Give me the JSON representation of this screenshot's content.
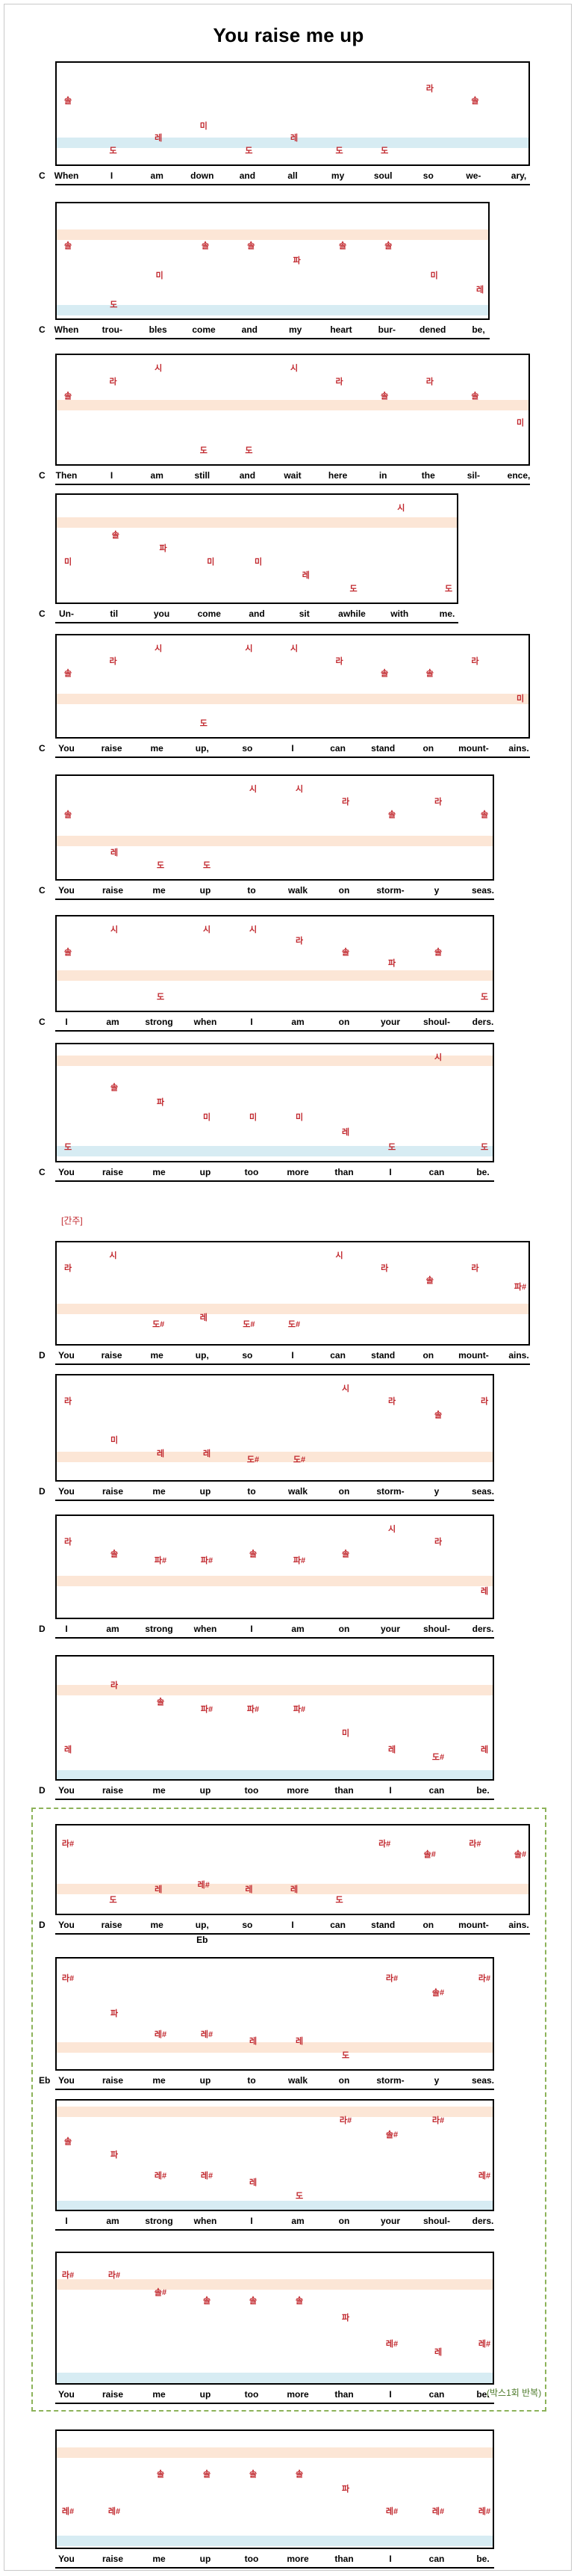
{
  "title": "You raise me up",
  "colors": {
    "note": "#c1272d",
    "band_peach": "#fce6d6",
    "band_blue": "#d7ecf3",
    "repeat_box": "#8db35a"
  },
  "intro_label": "[간주]",
  "repeat_label": "(박스1회 반복)",
  "rows": [
    {
      "chord": "C",
      "lyrics": [
        "When",
        "I",
        "am",
        "down",
        "and",
        "all",
        "my",
        "soul",
        "so",
        "we-",
        "ary,"
      ],
      "notes": [
        "솔",
        "도",
        "레",
        "미",
        "도",
        "레",
        "도",
        "도",
        "라",
        "솔",
        ""
      ]
    },
    {
      "chord": "C",
      "lyrics": [
        "When",
        "trou-",
        "bles",
        "come",
        "and",
        "my",
        "heart",
        "bur-",
        "dened",
        "be,"
      ],
      "notes": [
        "솔",
        "도",
        "미",
        "솔",
        "솔",
        "파",
        "솔",
        "솔",
        "미",
        "레"
      ]
    },
    {
      "chord": "C",
      "lyrics": [
        "Then",
        "I",
        "am",
        "still",
        "and",
        "wait",
        "here",
        "in",
        "the",
        "sil-",
        "ence,"
      ],
      "notes": [
        "솔",
        "라",
        "시",
        "도",
        "도",
        "시",
        "라",
        "솔",
        "라",
        "솔",
        "미"
      ]
    },
    {
      "chord": "C",
      "lyrics": [
        "Un-",
        "til",
        "you",
        "come",
        "and",
        "sit",
        "awhile",
        "with",
        "me."
      ],
      "notes": [
        "미",
        "솔",
        "파",
        "미",
        "미",
        "레",
        "도",
        "시",
        "도"
      ]
    },
    {
      "chord": "C",
      "lyrics": [
        "You",
        "raise",
        "me",
        "up,",
        "so",
        "I",
        "can",
        "stand",
        "on",
        "mount-",
        "ains."
      ],
      "notes": [
        "솔",
        "라",
        "시",
        "도",
        "시",
        "시",
        "라",
        "솔",
        "솔",
        "라",
        "미"
      ]
    },
    {
      "chord": "C",
      "lyrics": [
        "You",
        "raise",
        "me",
        "up",
        "to",
        "walk",
        "on",
        "storm-",
        "y",
        "seas."
      ],
      "notes": [
        "솔",
        "레",
        "도",
        "도",
        "시",
        "시",
        "라",
        "솔",
        "라",
        "솔"
      ]
    },
    {
      "chord": "C",
      "lyrics": [
        "I",
        "am",
        "strong",
        "when",
        "I",
        "am",
        "on",
        "your",
        "shoul-",
        "ders."
      ],
      "notes": [
        "솔",
        "시",
        "도",
        "시",
        "시",
        "라",
        "솔",
        "파",
        "솔",
        "도"
      ]
    },
    {
      "chord": "C",
      "lyrics": [
        "You",
        "raise",
        "me",
        "up",
        "too",
        "more",
        "than",
        "I",
        "can",
        "be."
      ],
      "notes": [
        "도",
        "솔",
        "파",
        "미",
        "미",
        "미",
        "레",
        "도",
        "시",
        "도"
      ]
    },
    {
      "chord": "D",
      "lyrics": [
        "You",
        "raise",
        "me",
        "up,",
        "so",
        "I",
        "can",
        "stand",
        "on",
        "mount-",
        "ains."
      ],
      "notes": [
        "라",
        "시",
        "도#",
        "레",
        "도#",
        "도#",
        "시",
        "라",
        "솔",
        "라",
        "파#"
      ]
    },
    {
      "chord": "D",
      "lyrics": [
        "You",
        "raise",
        "me",
        "up",
        "to",
        "walk",
        "on",
        "storm-",
        "y",
        "seas."
      ],
      "notes": [
        "라",
        "미",
        "레",
        "레",
        "도#",
        "도#",
        "시",
        "라",
        "솔",
        "라"
      ]
    },
    {
      "chord": "D",
      "lyrics": [
        "I",
        "am",
        "strong",
        "when",
        "I",
        "am",
        "on",
        "your",
        "shoul-",
        "ders."
      ],
      "notes": [
        "라",
        "솔",
        "파#",
        "파#",
        "솔",
        "파#",
        "솔",
        "시",
        "라",
        "레"
      ]
    },
    {
      "chord": "D",
      "lyrics": [
        "You",
        "raise",
        "me",
        "up",
        "too",
        "more",
        "than",
        "I",
        "can",
        "be."
      ],
      "notes": [
        "레",
        "라",
        "솔",
        "파#",
        "파#",
        "파#",
        "미",
        "레",
        "도#",
        "레"
      ]
    },
    {
      "chord": "D",
      "chord_extra": "Eb",
      "lyrics": [
        "You",
        "raise",
        "me",
        "up,",
        "so",
        "I",
        "can",
        "stand",
        "on",
        "mount-",
        "ains."
      ],
      "notes": [
        "라#",
        "도",
        "레",
        "레#",
        "레",
        "레",
        "도",
        "라#",
        "솔#",
        "라#",
        "솔#"
      ]
    },
    {
      "chord": "Eb",
      "lyrics": [
        "You",
        "raise",
        "me",
        "up",
        "to",
        "walk",
        "on",
        "storm-",
        "y",
        "seas."
      ],
      "notes": [
        "라#",
        "파",
        "레#",
        "레#",
        "레",
        "레",
        "도",
        "라#",
        "솔#",
        "라#"
      ]
    },
    {
      "chord": "",
      "lyrics": [
        "I",
        "am",
        "strong",
        "when",
        "I",
        "am",
        "on",
        "your",
        "shoul-",
        "ders."
      ],
      "notes": [
        "솔",
        "파",
        "레#",
        "레#",
        "레",
        "도",
        "라#",
        "솔#",
        "라#",
        "레#"
      ]
    },
    {
      "chord": "",
      "lyrics": [
        "You",
        "raise",
        "me",
        "up",
        "too",
        "more",
        "than",
        "I",
        "can",
        "be."
      ],
      "notes": [
        "라#",
        "라#",
        "솔#",
        "솔",
        "솔",
        "솔",
        "파",
        "레#",
        "레",
        "레#"
      ]
    },
    {
      "chord": "",
      "lyrics": [
        "You",
        "raise",
        "me",
        "up",
        "too",
        "more",
        "than",
        "I",
        "can",
        "be."
      ],
      "notes": [
        "레#",
        "레#",
        "솔",
        "솔",
        "솔",
        "솔",
        "파",
        "레#",
        "레#",
        "레#"
      ]
    }
  ]
}
